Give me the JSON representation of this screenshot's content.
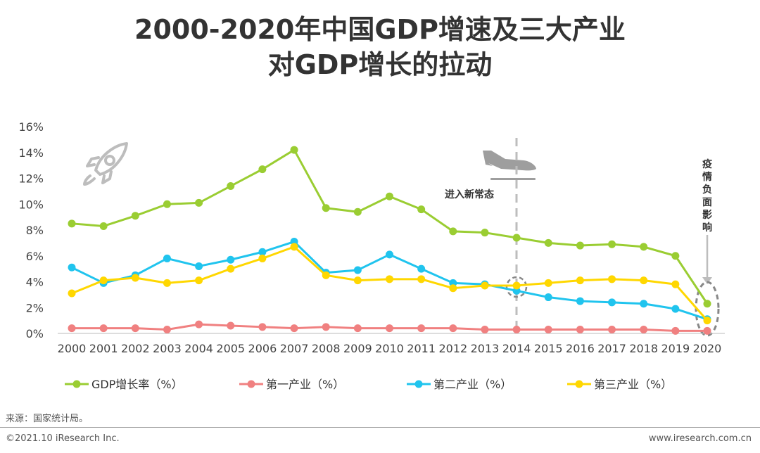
{
  "title_line1": "2000-2020年中国GDP增速及三大产业",
  "title_line2": "对GDP增长的拉动",
  "source": "来源：国家统计局。",
  "copyright": "©2021.10 iResearch Inc.",
  "website": "www.iresearch.com.cn",
  "chart_data": {
    "type": "line",
    "title": "2000-2020年中国GDP增速及三大产业对GDP增长的拉动",
    "xlabel": "",
    "ylabel": "",
    "ylim": [
      0,
      16
    ],
    "y_ticks": [
      "0%",
      "2%",
      "4%",
      "6%",
      "8%",
      "10%",
      "12%",
      "14%",
      "16%"
    ],
    "categories": [
      "2000",
      "2001",
      "2002",
      "2003",
      "2004",
      "2005",
      "2006",
      "2007",
      "2008",
      "2009",
      "2010",
      "2011",
      "2012",
      "2013",
      "2014",
      "2015",
      "2016",
      "2017",
      "2018",
      "2019",
      "2020"
    ],
    "series": [
      {
        "name": "GDP增长率（%）",
        "color": "#9acd32",
        "values": [
          8.5,
          8.3,
          9.1,
          10.0,
          10.1,
          11.4,
          12.7,
          14.2,
          9.7,
          9.4,
          10.6,
          9.6,
          7.9,
          7.8,
          7.4,
          7.0,
          6.8,
          6.9,
          6.7,
          6.0,
          2.3
        ]
      },
      {
        "name": "第一产业（%）",
        "color": "#f08080",
        "values": [
          0.4,
          0.4,
          0.4,
          0.3,
          0.7,
          0.6,
          0.5,
          0.4,
          0.5,
          0.4,
          0.4,
          0.4,
          0.4,
          0.3,
          0.3,
          0.3,
          0.3,
          0.3,
          0.3,
          0.2,
          0.2
        ]
      },
      {
        "name": "第二产业（%）",
        "color": "#20c4ee",
        "values": [
          5.1,
          3.9,
          4.5,
          5.8,
          5.2,
          5.7,
          6.3,
          7.1,
          4.7,
          4.9,
          6.1,
          5.0,
          3.9,
          3.8,
          3.3,
          2.8,
          2.5,
          2.4,
          2.3,
          1.9,
          1.1
        ]
      },
      {
        "name": "第三产业（%）",
        "color": "#ffd700",
        "values": [
          3.1,
          4.1,
          4.3,
          3.9,
          4.1,
          5.0,
          5.8,
          6.7,
          4.5,
          4.1,
          4.2,
          4.2,
          3.5,
          3.7,
          3.7,
          3.9,
          4.1,
          4.2,
          4.1,
          3.8,
          1.0
        ]
      }
    ],
    "annotations": {
      "new_normal": "进入新常态",
      "pandemic": "疫情负面影响"
    }
  }
}
